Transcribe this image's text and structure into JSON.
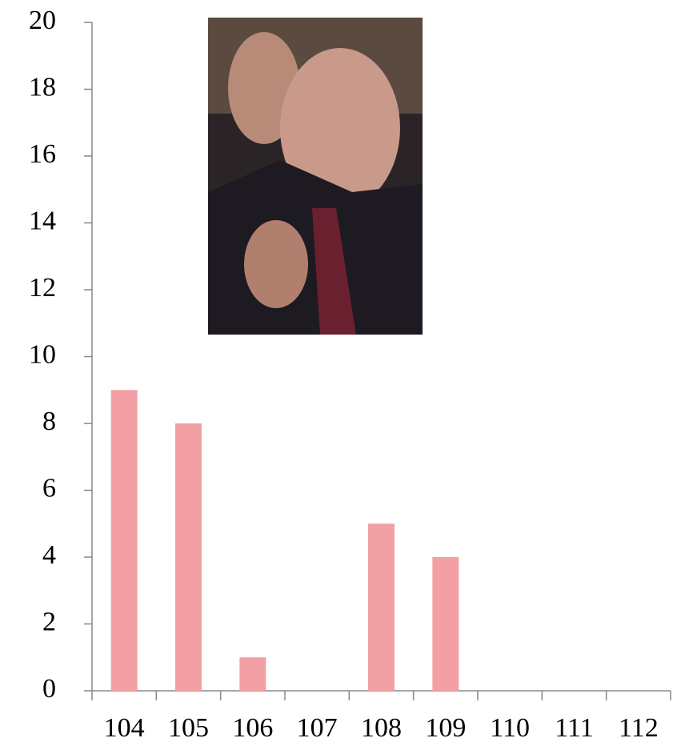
{
  "chart_data": {
    "type": "bar",
    "categories": [
      "104",
      "105",
      "106",
      "107",
      "108",
      "109",
      "110",
      "111",
      "112"
    ],
    "values": [
      9,
      8,
      1,
      0,
      5,
      4,
      0,
      0,
      0
    ],
    "color": "#f2a0a4",
    "ylim": [
      0,
      20
    ],
    "yticks": [
      0,
      2,
      4,
      6,
      8,
      10,
      12,
      14,
      16,
      18,
      20
    ],
    "grid": false
  }
}
